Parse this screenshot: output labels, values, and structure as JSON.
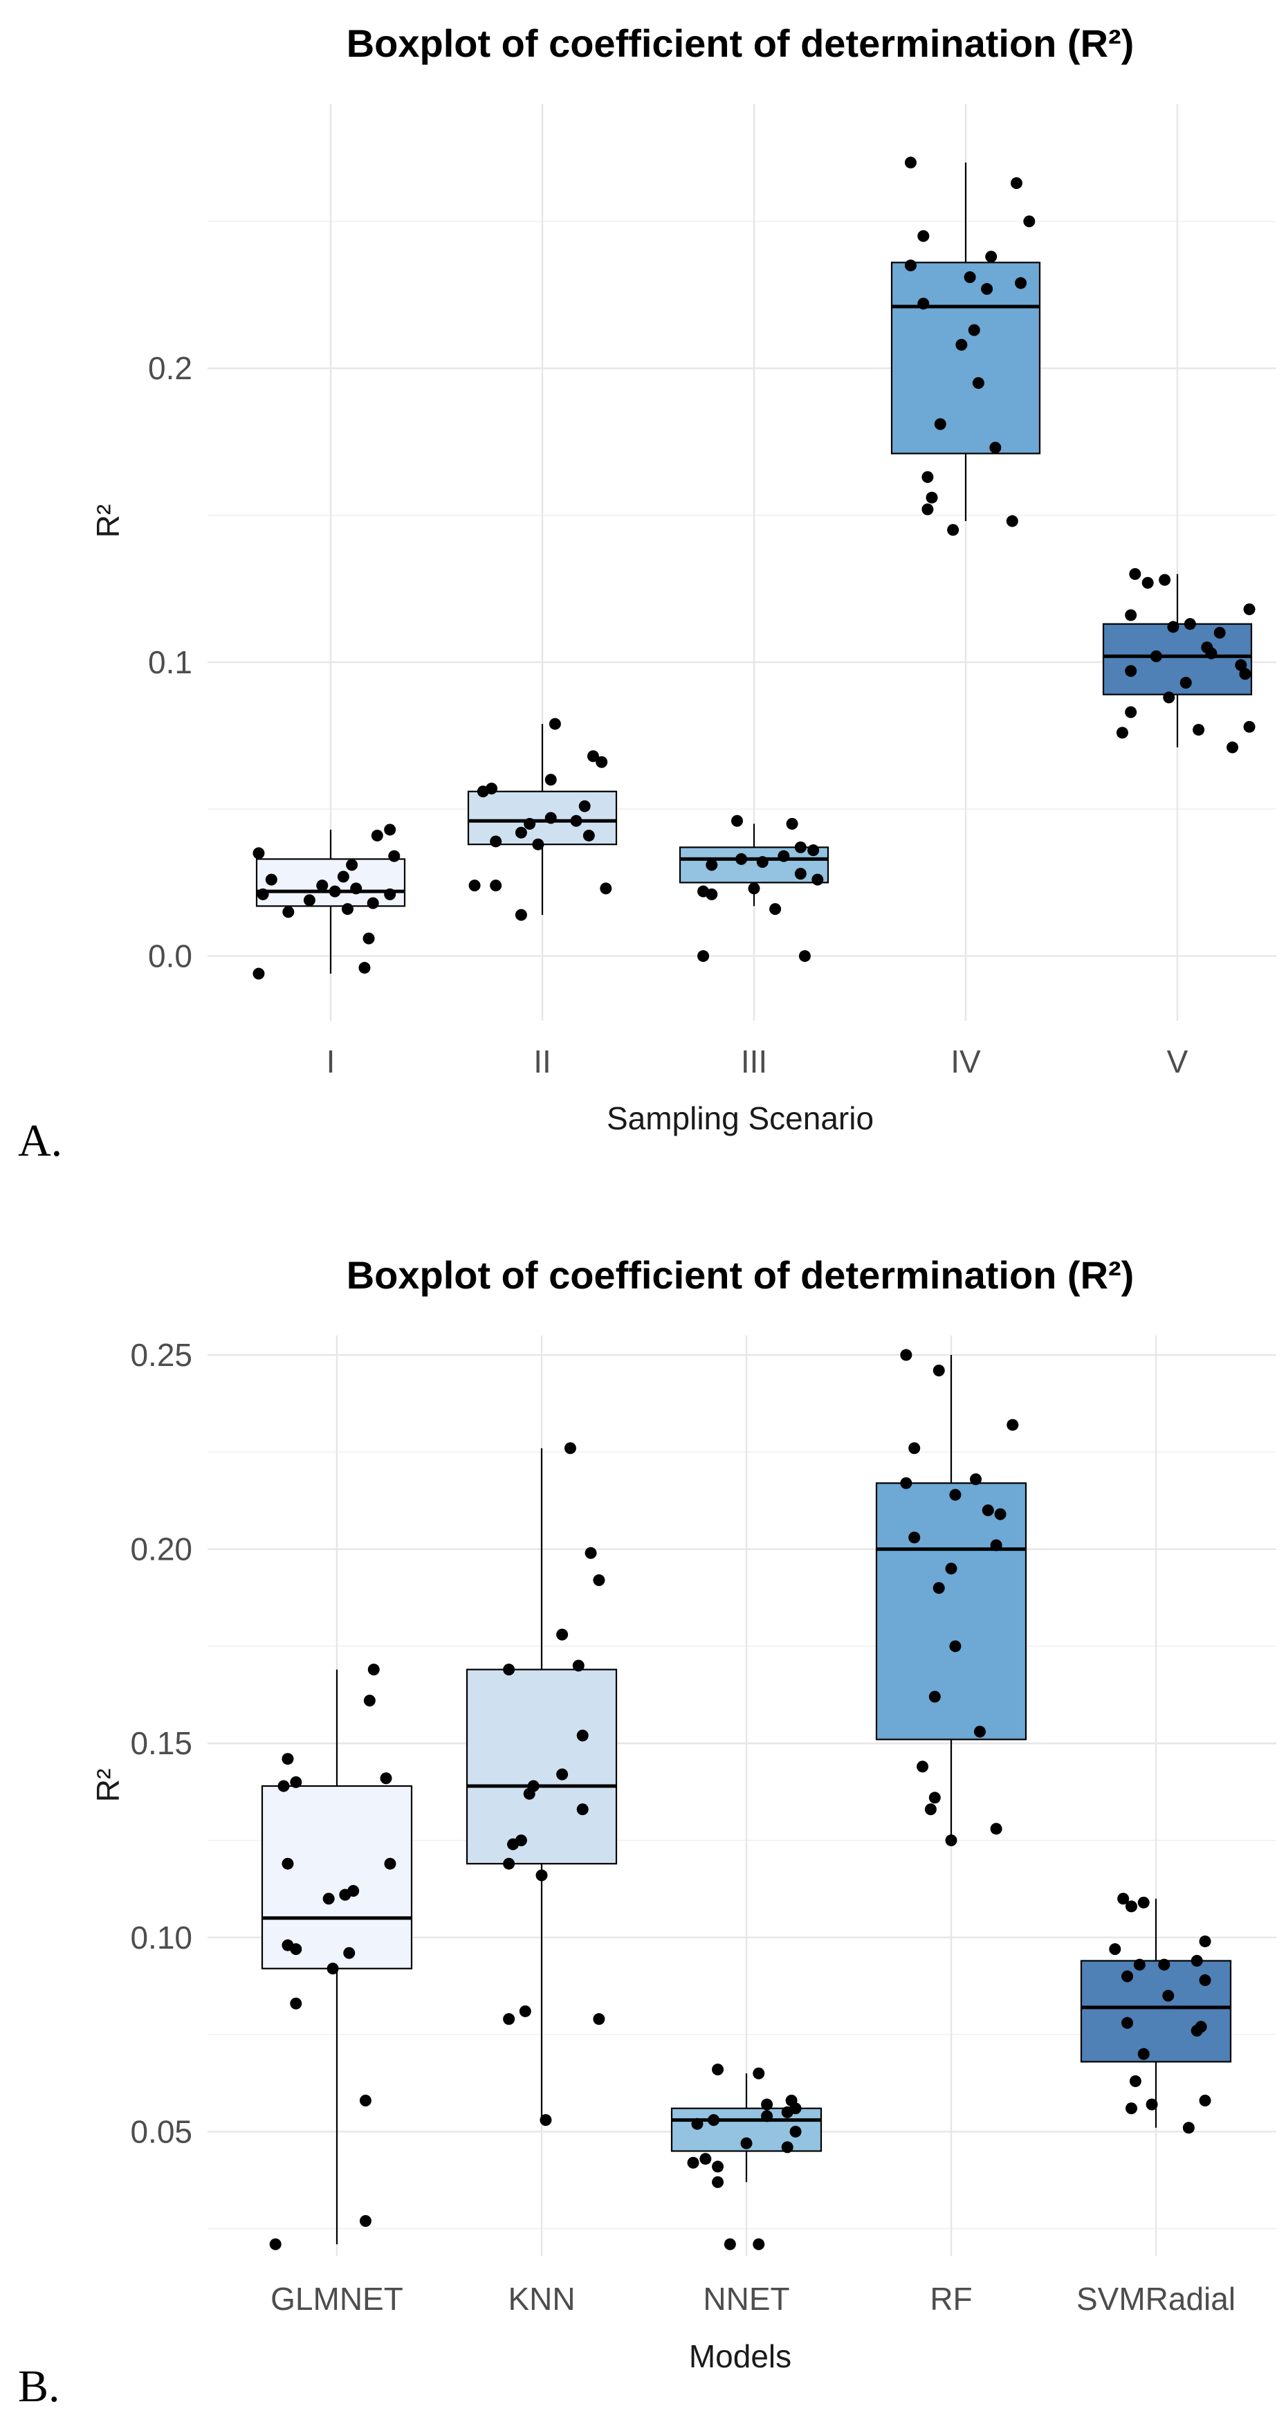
{
  "chart_data": [
    {
      "type": "box",
      "title": "Boxplot of coefficient of determination (R²)",
      "xlabel": "Sampling Scenario",
      "ylabel": "R²",
      "panel_label": "A.",
      "ylim": [
        -0.022,
        0.29
      ],
      "yticks": [
        0.0,
        0.1,
        0.2
      ],
      "ytick_labels": [
        "0.0",
        "0.1",
        "0.2"
      ],
      "categories": [
        "I",
        "II",
        "III",
        "IV",
        "V"
      ],
      "box_colors": [
        "#f0f4fc",
        "#cfe1f0",
        "#93c3e1",
        "#6ea8d4",
        "#4f80b6"
      ],
      "boxes": [
        {
          "q1": 0.017,
          "median": 0.022,
          "q3": 0.033,
          "whisker_low": -0.006,
          "whisker_high": 0.043
        },
        {
          "q1": 0.038,
          "median": 0.046,
          "q3": 0.056,
          "whisker_low": 0.014,
          "whisker_high": 0.079
        },
        {
          "q1": 0.025,
          "median": 0.033,
          "q3": 0.037,
          "whisker_low": 0.017,
          "whisker_high": 0.045
        },
        {
          "q1": 0.171,
          "median": 0.221,
          "q3": 0.236,
          "whisker_low": 0.148,
          "whisker_high": 0.27
        },
        {
          "q1": 0.089,
          "median": 0.102,
          "q3": 0.113,
          "whisker_low": 0.071,
          "whisker_high": 0.13
        }
      ],
      "points": [
        {
          "category": "I",
          "values": [
            -0.006,
            -0.004,
            0.006,
            0.015,
            0.016,
            0.018,
            0.019,
            0.021,
            0.021,
            0.022,
            0.023,
            0.024,
            0.026,
            0.027,
            0.031,
            0.034,
            0.035,
            0.041,
            0.043
          ],
          "jitter": [
            -0.34,
            0.16,
            0.18,
            -0.2,
            0.08,
            0.2,
            -0.1,
            -0.32,
            0.28,
            0.02,
            0.12,
            -0.04,
            -0.28,
            0.06,
            0.1,
            0.3,
            -0.34,
            0.22,
            0.28
          ]
        },
        {
          "category": "II",
          "values": [
            0.014,
            0.023,
            0.024,
            0.024,
            0.038,
            0.039,
            0.041,
            0.042,
            0.045,
            0.046,
            0.047,
            0.051,
            0.056,
            0.057,
            0.06,
            0.066,
            0.068,
            0.079
          ],
          "jitter": [
            -0.1,
            0.3,
            -0.32,
            -0.22,
            -0.02,
            -0.22,
            0.22,
            -0.1,
            -0.06,
            0.16,
            0.04,
            0.2,
            -0.28,
            -0.24,
            0.04,
            0.28,
            0.24,
            0.06
          ]
        },
        {
          "category": "III",
          "values": [
            0.0,
            0.0,
            0.016,
            0.021,
            0.022,
            0.023,
            0.026,
            0.028,
            0.031,
            0.032,
            0.033,
            0.034,
            0.036,
            0.037,
            0.045,
            0.046
          ],
          "jitter": [
            -0.24,
            0.24,
            0.1,
            -0.2,
            -0.24,
            0.0,
            0.3,
            0.22,
            -0.2,
            0.04,
            -0.06,
            0.14,
            0.28,
            0.22,
            0.18,
            -0.08
          ]
        },
        {
          "category": "IV",
          "values": [
            0.145,
            0.148,
            0.152,
            0.156,
            0.163,
            0.173,
            0.181,
            0.195,
            0.208,
            0.213,
            0.222,
            0.227,
            0.229,
            0.231,
            0.235,
            0.238,
            0.245,
            0.25,
            0.263,
            0.27
          ],
          "jitter": [
            -0.06,
            0.22,
            -0.18,
            -0.16,
            -0.18,
            0.14,
            -0.12,
            0.06,
            -0.02,
            0.04,
            -0.2,
            0.1,
            0.26,
            0.02,
            -0.26,
            0.12,
            -0.2,
            0.3,
            0.24,
            -0.26
          ]
        },
        {
          "category": "V",
          "values": [
            0.071,
            0.076,
            0.077,
            0.078,
            0.083,
            0.088,
            0.093,
            0.096,
            0.097,
            0.099,
            0.102,
            0.103,
            0.105,
            0.11,
            0.112,
            0.113,
            0.116,
            0.118,
            0.127,
            0.128,
            0.13
          ],
          "jitter": [
            0.26,
            -0.26,
            0.1,
            0.34,
            -0.22,
            -0.04,
            0.04,
            0.32,
            -0.22,
            0.3,
            -0.1,
            0.16,
            0.14,
            0.2,
            -0.02,
            0.06,
            -0.22,
            0.34,
            -0.14,
            -0.06,
            -0.2
          ]
        }
      ]
    },
    {
      "type": "box",
      "title": "Boxplot of coefficient of determination (R²)",
      "xlabel": "Models",
      "ylabel": "R²",
      "panel_label": "B.",
      "ylim": [
        0.018,
        0.255
      ],
      "yticks": [
        0.05,
        0.1,
        0.15,
        0.2,
        0.25
      ],
      "ytick_labels": [
        "0.05",
        "0.10",
        "0.15",
        "0.20",
        "0.25"
      ],
      "categories": [
        "GLMNET",
        "KNN",
        "NNET",
        "RF",
        "SVMRadial"
      ],
      "box_colors": [
        "#f0f4fc",
        "#cfe1f0",
        "#93c3e1",
        "#6ea8d4",
        "#4f80b6"
      ],
      "boxes": [
        {
          "q1": 0.092,
          "median": 0.105,
          "q3": 0.139,
          "whisker_low": 0.021,
          "whisker_high": 0.169
        },
        {
          "q1": 0.119,
          "median": 0.139,
          "q3": 0.169,
          "whisker_low": 0.053,
          "whisker_high": 0.226
        },
        {
          "q1": 0.045,
          "median": 0.053,
          "q3": 0.056,
          "whisker_low": 0.037,
          "whisker_high": 0.065
        },
        {
          "q1": 0.151,
          "median": 0.2,
          "q3": 0.217,
          "whisker_low": 0.125,
          "whisker_high": 0.25
        },
        {
          "q1": 0.068,
          "median": 0.082,
          "q3": 0.094,
          "whisker_low": 0.051,
          "whisker_high": 0.11
        }
      ],
      "points": [
        {
          "category": "GLMNET",
          "values": [
            0.021,
            0.027,
            0.058,
            0.083,
            0.092,
            0.096,
            0.097,
            0.098,
            0.11,
            0.111,
            0.112,
            0.119,
            0.119,
            0.139,
            0.14,
            0.141,
            0.146,
            0.161,
            0.169
          ],
          "jitter": [
            -0.3,
            0.14,
            0.14,
            -0.2,
            -0.02,
            0.06,
            -0.2,
            -0.24,
            -0.04,
            0.04,
            0.08,
            -0.24,
            0.26,
            -0.26,
            -0.2,
            0.24,
            -0.24,
            0.16,
            0.18
          ]
        },
        {
          "category": "KNN",
          "values": [
            0.053,
            0.079,
            0.079,
            0.081,
            0.116,
            0.119,
            0.124,
            0.125,
            0.133,
            0.137,
            0.139,
            0.142,
            0.152,
            0.169,
            0.17,
            0.178,
            0.192,
            0.199,
            0.226
          ],
          "jitter": [
            0.02,
            -0.16,
            0.28,
            -0.08,
            0.0,
            -0.16,
            -0.14,
            -0.1,
            0.2,
            -0.06,
            -0.04,
            0.1,
            0.2,
            -0.16,
            0.18,
            0.1,
            0.28,
            0.24,
            0.14
          ]
        },
        {
          "category": "NNET",
          "values": [
            0.021,
            0.021,
            0.037,
            0.041,
            0.042,
            0.043,
            0.046,
            0.047,
            0.05,
            0.052,
            0.053,
            0.054,
            0.055,
            0.056,
            0.057,
            0.058,
            0.065,
            0.066
          ],
          "jitter": [
            -0.08,
            0.06,
            -0.14,
            -0.14,
            -0.26,
            -0.2,
            0.2,
            0.0,
            0.24,
            -0.24,
            -0.16,
            0.1,
            0.2,
            0.24,
            0.1,
            0.22,
            0.06,
            -0.14
          ]
        },
        {
          "category": "RF",
          "values": [
            0.125,
            0.128,
            0.133,
            0.136,
            0.144,
            0.153,
            0.162,
            0.175,
            0.19,
            0.195,
            0.201,
            0.203,
            0.209,
            0.21,
            0.214,
            0.217,
            0.218,
            0.226,
            0.232,
            0.246,
            0.25
          ],
          "jitter": [
            0.0,
            0.22,
            -0.1,
            -0.08,
            -0.14,
            0.14,
            -0.08,
            0.02,
            -0.06,
            0.0,
            0.22,
            -0.18,
            0.24,
            0.18,
            0.02,
            -0.22,
            0.12,
            -0.18,
            0.3,
            -0.06,
            -0.22
          ]
        },
        {
          "category": "SVMRadial",
          "values": [
            0.051,
            0.056,
            0.057,
            0.058,
            0.063,
            0.07,
            0.076,
            0.077,
            0.078,
            0.085,
            0.089,
            0.09,
            0.093,
            0.093,
            0.094,
            0.097,
            0.099,
            0.108,
            0.109,
            0.11
          ],
          "jitter": [
            0.16,
            -0.12,
            -0.02,
            0.24,
            -0.1,
            -0.06,
            0.2,
            0.22,
            -0.14,
            0.06,
            0.24,
            -0.14,
            -0.08,
            0.04,
            0.2,
            -0.2,
            0.24,
            -0.12,
            -0.06,
            -0.16
          ]
        }
      ]
    }
  ]
}
